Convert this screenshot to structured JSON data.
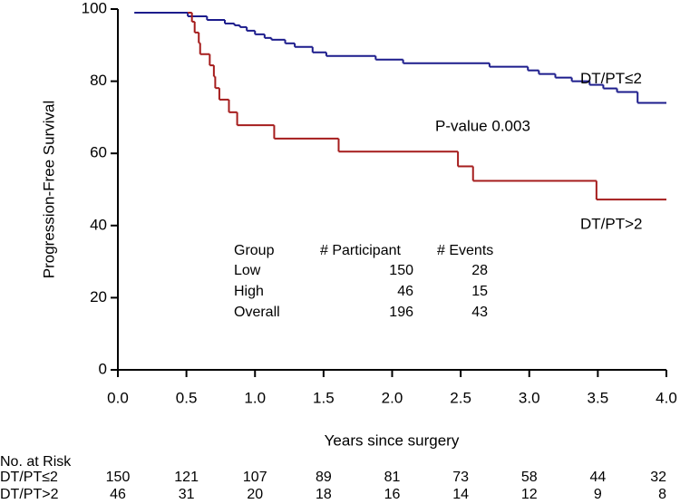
{
  "chart_data": {
    "type": "step",
    "y_label": "Progression-Free Survival",
    "x_label": "Years since surgery",
    "xlim": [
      0,
      4
    ],
    "ylim": [
      0,
      100
    ],
    "xticks": [
      {
        "value": 0,
        "label": "0.0"
      },
      0.5,
      {
        "value": 1,
        "label": "1.0"
      },
      1.5,
      {
        "value": 2,
        "label": "2.0"
      },
      2.5,
      {
        "value": 3,
        "label": "3.0"
      },
      3.5,
      {
        "value": 4,
        "label": "4.0"
      }
    ],
    "yticks": [
      0,
      20,
      40,
      60,
      80,
      100
    ],
    "annotation": "P-value 0.003",
    "series": [
      {
        "name": "DT/PT≤2",
        "color": "#1c1c8c",
        "x": [
          0.12,
          0.51,
          0.65,
          0.78,
          0.85,
          0.89,
          0.94,
          1.0,
          1.07,
          1.12,
          1.22,
          1.29,
          1.42,
          1.52,
          1.88,
          2.08,
          2.71,
          2.99,
          3.07,
          3.19,
          3.31,
          3.44,
          3.54,
          3.64,
          3.79,
          4.0
        ],
        "values": [
          99,
          98,
          97,
          96,
          95.5,
          95,
          94,
          93,
          92,
          91.5,
          90.5,
          89.5,
          88,
          87,
          86,
          85,
          84,
          83,
          82,
          81,
          80,
          79,
          78,
          77,
          74,
          74
        ]
      },
      {
        "name": "DT/PT>2",
        "color": "#a51c1c",
        "x": [
          0.51,
          0.54,
          0.56,
          0.59,
          0.6,
          0.67,
          0.7,
          0.71,
          0.74,
          0.81,
          0.87,
          1.14,
          1.61,
          2.48,
          2.59,
          3.49,
          4.0
        ],
        "values": [
          99,
          96.5,
          93.5,
          90.6,
          87.5,
          84.4,
          81.3,
          78.1,
          74.9,
          71.4,
          67.8,
          64.1,
          60.5,
          56.4,
          52.4,
          47.2,
          47.2
        ]
      }
    ],
    "summary_table": {
      "header": [
        "Group",
        "# Participant",
        "# Events"
      ],
      "rows": [
        [
          "Low",
          "150",
          "28"
        ],
        [
          "High",
          "46",
          "15"
        ],
        [
          "Overall",
          "196",
          "43"
        ]
      ]
    }
  },
  "risk_table": {
    "title": "No. at Risk",
    "rows": [
      {
        "label": "DT/PT≤2",
        "counts": [
          "150",
          "121",
          "107",
          "89",
          "81",
          "73",
          "58",
          "44",
          "32"
        ]
      },
      {
        "label": "DT/PT>2",
        "counts": [
          "46",
          "31",
          "20",
          "18",
          "16",
          "14",
          "12",
          "9",
          "8"
        ]
      }
    ]
  }
}
